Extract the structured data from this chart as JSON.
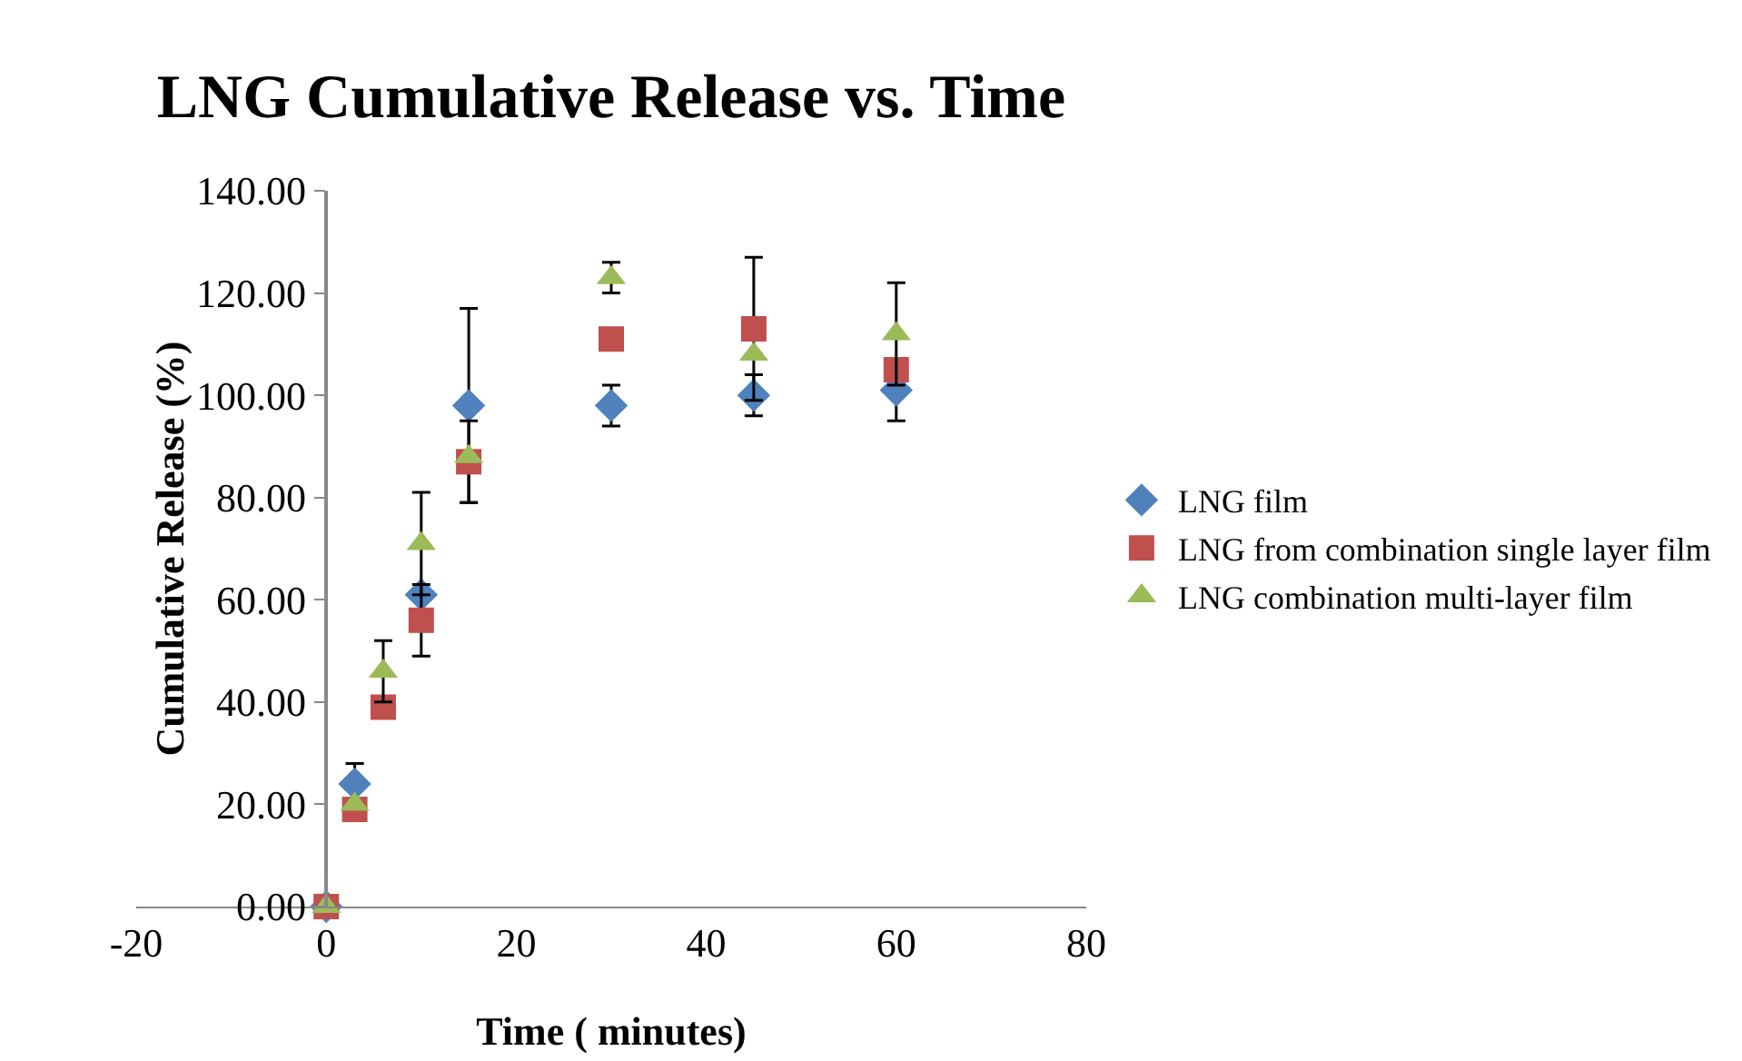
{
  "chart_data": {
    "type": "scatter",
    "title": "LNG Cumulative Release vs. Time",
    "xlabel": "Time ( minutes)",
    "ylabel": "Cumulative Release (%)",
    "x": [
      0,
      3,
      6,
      10,
      15,
      30,
      45,
      60
    ],
    "series": [
      {
        "name": "LNG film",
        "color": "#4f81bd",
        "marker": "diamond",
        "values": [
          0,
          24,
          null,
          61,
          98,
          98,
          100,
          101
        ],
        "errors": [
          null,
          4,
          null,
          null,
          19,
          4,
          4,
          6
        ]
      },
      {
        "name": "LNG from combination single layer film",
        "color": "#c0504d",
        "marker": "square",
        "values": [
          0,
          19,
          39,
          56,
          87,
          111,
          113,
          105
        ],
        "errors": [
          null,
          null,
          null,
          7,
          8,
          null,
          14,
          null
        ]
      },
      {
        "name": "LNG combination multi-layer film",
        "color": "#9bbb59",
        "marker": "triangle",
        "values": [
          0,
          20,
          46,
          71,
          88,
          123,
          108,
          112
        ],
        "errors": [
          null,
          null,
          6,
          10,
          null,
          3,
          null,
          10
        ]
      }
    ],
    "xlim": [
      -20,
      80
    ],
    "xticks": [
      -20,
      0,
      20,
      40,
      60,
      80
    ],
    "ylim": [
      0,
      140
    ],
    "yticks": [
      {
        "value": 0,
        "label": "0.00"
      },
      {
        "value": 20,
        "label": "20.00"
      },
      {
        "value": 40,
        "label": "40.00"
      },
      {
        "value": 60,
        "label": "60.00"
      },
      {
        "value": 80,
        "label": "80.00"
      },
      {
        "value": 100,
        "label": "100.00"
      },
      {
        "value": 120,
        "label": "120.00"
      },
      {
        "value": 140,
        "label": "140.00"
      }
    ],
    "grid": false,
    "legend": "right"
  }
}
